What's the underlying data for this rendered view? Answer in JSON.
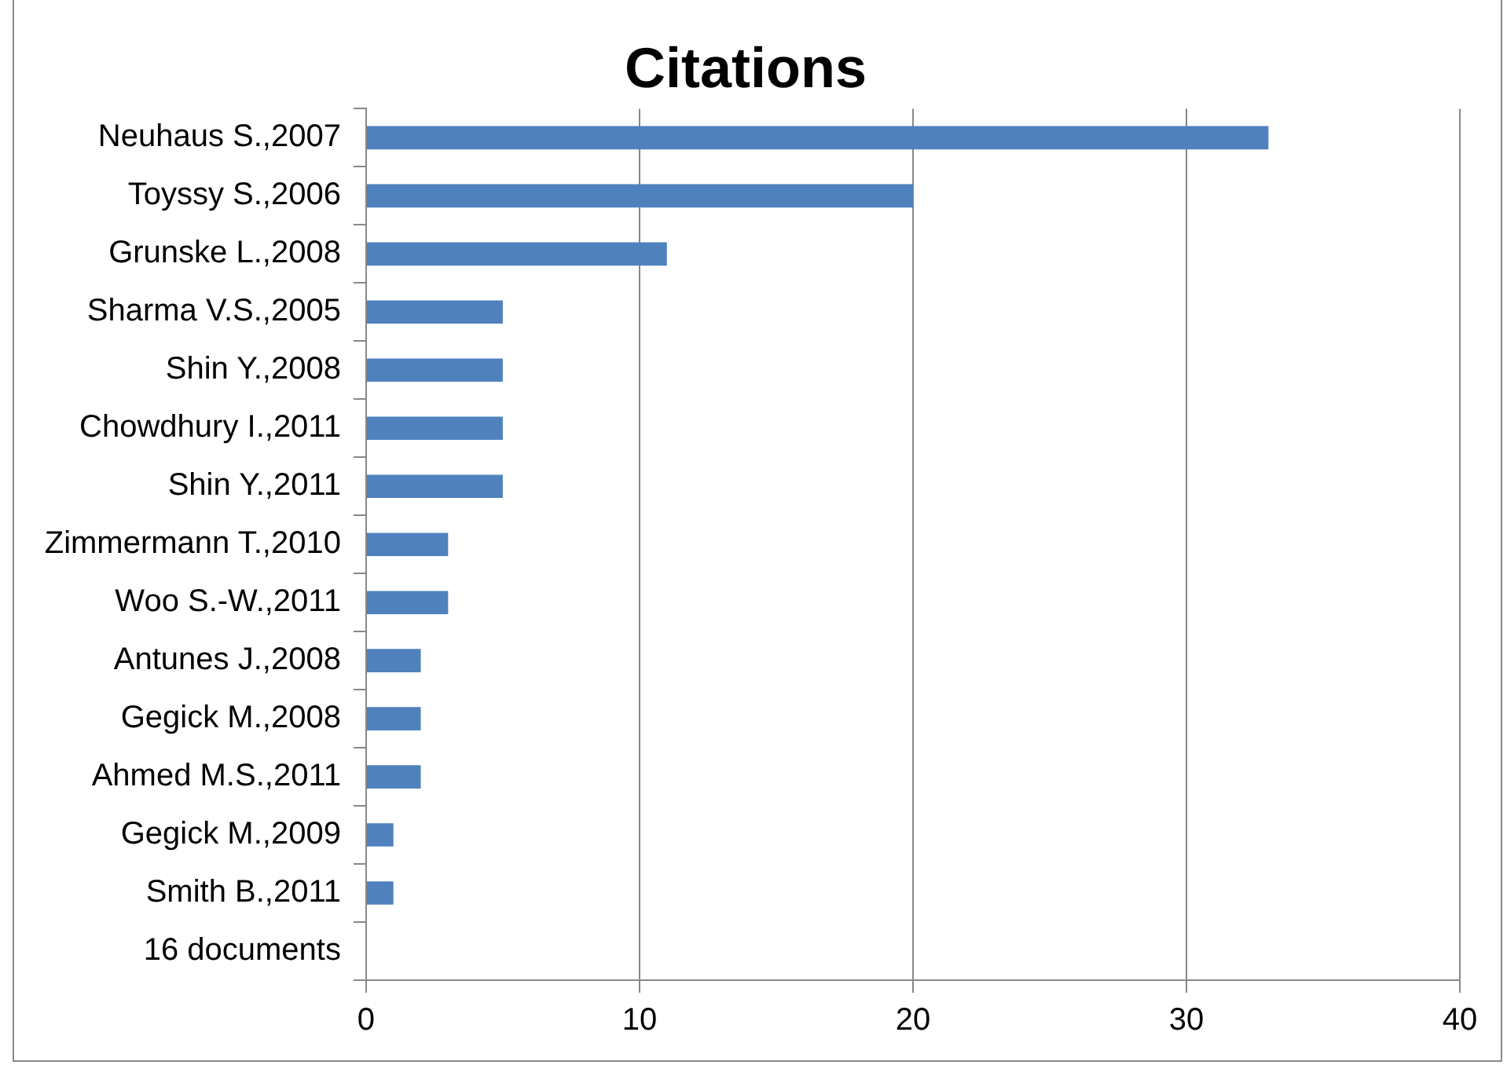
{
  "chart_data": {
    "type": "bar",
    "orientation": "horizontal",
    "title": "Citations",
    "categories": [
      "Neuhaus S.,2007",
      "Toyssy S.,2006",
      "Grunske L.,2008",
      "Sharma V.S.,2005",
      "Shin Y.,2008",
      "Chowdhury I.,2011",
      "Shin Y.,2011",
      "Zimmermann T.,2010",
      "Woo S.-W.,2011",
      "Antunes J.,2008",
      "Gegick M.,2008",
      "Ahmed M.S.,2011",
      "Gegick M.,2009",
      "Smith B.,2011",
      "16 documents"
    ],
    "values": [
      33,
      20,
      11,
      5,
      5,
      5,
      5,
      3,
      3,
      2,
      2,
      2,
      1,
      1,
      null
    ],
    "color": "#4f81bd",
    "xlim": [
      0,
      40
    ],
    "xticks": [
      0,
      10,
      20,
      30,
      40
    ],
    "grid": "x"
  }
}
